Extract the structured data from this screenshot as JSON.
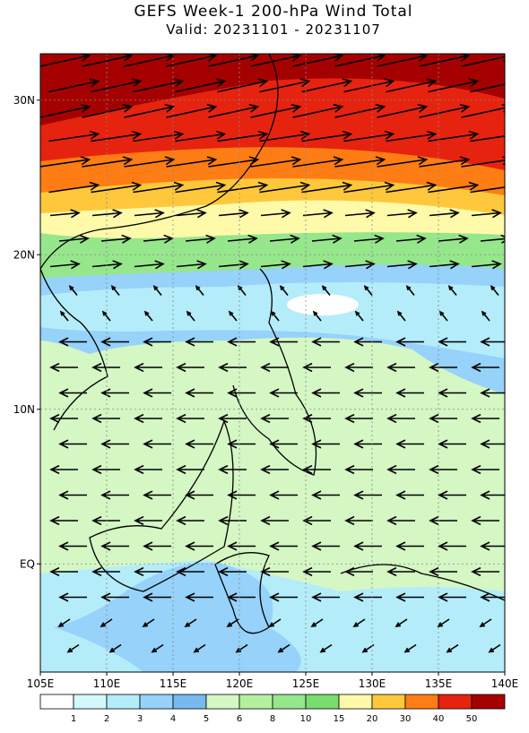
{
  "map": {
    "title": "GEFS Week-1 200-hPa Wind Total",
    "subtitle": "Valid: 20231101 - 20231107",
    "xlim": [
      105,
      140
    ],
    "ylim": [
      -7,
      33
    ],
    "xticks": [
      {
        "value": 105,
        "label": "105E"
      },
      {
        "value": 110,
        "label": "110E"
      },
      {
        "value": 115,
        "label": "115E"
      },
      {
        "value": 120,
        "label": "120E"
      },
      {
        "value": 125,
        "label": "125E"
      },
      {
        "value": 130,
        "label": "130E"
      },
      {
        "value": 135,
        "label": "135E"
      },
      {
        "value": 140,
        "label": "140E"
      }
    ],
    "yticks": [
      {
        "value": 0,
        "label": "EQ"
      },
      {
        "value": 10,
        "label": "10N"
      },
      {
        "value": 20,
        "label": "20N"
      },
      {
        "value": 30,
        "label": "30N"
      }
    ],
    "grid": true,
    "colorbar": {
      "levels": [
        1,
        2,
        3,
        4,
        5,
        6,
        8,
        10,
        15,
        20,
        30,
        40,
        50
      ],
      "colors": [
        "#ffffff",
        "#d2f8fa",
        "#b4ecfa",
        "#96d2fa",
        "#78b9f0",
        "#d4f7c4",
        "#b4f0a0",
        "#96e68c",
        "#78dc6e",
        "#fffaaa",
        "#ffc83c",
        "#ff7d14",
        "#e6230f",
        "#a50000"
      ]
    }
  }
}
